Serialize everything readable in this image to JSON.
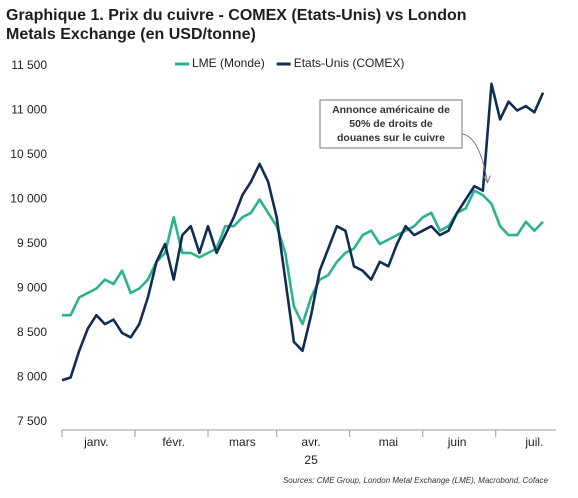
{
  "chart_data": {
    "type": "line",
    "title": [
      "Graphique 1. Prix du cuivre - COMEX (Etats-Unis) vs London",
      "Metals Exchange (en USD/tonne)"
    ],
    "categories": [
      null,
      null,
      null,
      null,
      "janv.",
      null,
      null,
      null,
      null,
      null,
      null,
      null,
      null,
      "févr.",
      null,
      null,
      null,
      null,
      null,
      null,
      null,
      "mars",
      null,
      null,
      null,
      null,
      null,
      null,
      null,
      "avr.",
      null,
      null,
      null,
      null,
      null,
      null,
      null,
      null,
      "mai",
      null,
      null,
      null,
      null,
      null,
      null,
      null,
      "juin",
      null,
      null,
      null,
      null,
      null,
      null,
      null,
      null,
      "juil.",
      null
    ],
    "year_label": "25",
    "series": [
      {
        "name": "LME (Monde)",
        "color": "#2bb38b",
        "values": [
          8700,
          8700,
          8900,
          8950,
          9000,
          9100,
          9050,
          9200,
          8950,
          9000,
          9100,
          9300,
          9400,
          9800,
          9400,
          9400,
          9350,
          9400,
          9450,
          9700,
          9700,
          9800,
          9850,
          10000,
          9850,
          9700,
          9400,
          8800,
          8600,
          8900,
          9100,
          9150,
          9300,
          9400,
          9450,
          9600,
          9650,
          9500,
          9550,
          9600,
          9650,
          9700,
          9800,
          9850,
          9650,
          9700,
          9850,
          9900,
          10100,
          10050,
          9950,
          9700,
          9600,
          9600,
          9750,
          9650,
          9750
        ]
      },
      {
        "name": "Etats-Unis (COMEX)",
        "color": "#0f2d55",
        "values": [
          7970,
          8000,
          8300,
          8550,
          8700,
          8600,
          8650,
          8500,
          8450,
          8600,
          8900,
          9300,
          9500,
          9100,
          9600,
          9700,
          9400,
          9700,
          9400,
          9600,
          9800,
          10050,
          10200,
          10400,
          10200,
          9800,
          9100,
          8400,
          8300,
          8700,
          9200,
          9450,
          9700,
          9650,
          9250,
          9200,
          9100,
          9300,
          9250,
          9500,
          9700,
          9600,
          9650,
          9700,
          9600,
          9650,
          9850,
          10000,
          10150,
          10100,
          11300,
          10900,
          11100,
          11000,
          11050,
          10980,
          11200
        ]
      }
    ],
    "ylim": [
      7500,
      11500
    ],
    "yticks": [
      {
        "value": 7500,
        "label": "7 500"
      },
      {
        "value": 8000,
        "label": "8 000"
      },
      {
        "value": 8500,
        "label": "8 500"
      },
      {
        "value": 9000,
        "label": "9 000"
      },
      {
        "value": 9500,
        "label": "9 500"
      },
      {
        "value": 10000,
        "label": "10 000"
      },
      {
        "value": 10500,
        "label": "10 500"
      },
      {
        "value": 11000,
        "label": "11 000"
      },
      {
        "value": 11500,
        "label": "11 500"
      }
    ],
    "grid": false,
    "legend": "top",
    "annotation": {
      "lines": [
        "Annonce américaine de",
        "50% de droits de",
        "douanes sur le cuivre"
      ],
      "index": 50
    },
    "source": "Sources: CME Group, London Metal Exchange (LME), Macrobond, Coface"
  }
}
